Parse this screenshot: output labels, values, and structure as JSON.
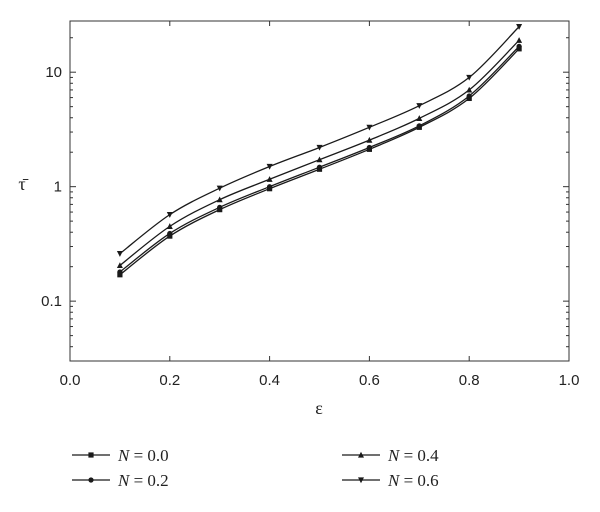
{
  "chart_data": {
    "type": "line",
    "xlabel": "ε",
    "ylabel": "τ̄",
    "xlim": [
      0.0,
      1.0
    ],
    "ylim": [
      0.03,
      28
    ],
    "y_scale": "log",
    "x_ticks": [
      "0.0",
      "0.2",
      "0.4",
      "0.6",
      "0.8",
      "1.0"
    ],
    "y_ticks": [
      "0.1",
      "1",
      "10"
    ],
    "grid": false,
    "legend_position": "bottom",
    "x": [
      0.1,
      0.2,
      0.3,
      0.4,
      0.5,
      0.6,
      0.7,
      0.8,
      0.9
    ],
    "series": [
      {
        "name": "N = 0.0",
        "marker": "square",
        "values": [
          0.17,
          0.37,
          0.63,
          0.96,
          1.42,
          2.12,
          3.3,
          5.9,
          16
        ]
      },
      {
        "name": "N = 0.2",
        "marker": "circle",
        "values": [
          0.18,
          0.39,
          0.66,
          1.0,
          1.48,
          2.2,
          3.4,
          6.2,
          16.8
        ]
      },
      {
        "name": "N = 0.4",
        "marker": "triangle-up",
        "values": [
          0.205,
          0.45,
          0.77,
          1.16,
          1.72,
          2.55,
          3.95,
          7.0,
          19
        ]
      },
      {
        "name": "N = 0.6",
        "marker": "triangle-down",
        "values": [
          0.26,
          0.57,
          0.97,
          1.5,
          2.2,
          3.3,
          5.1,
          9.0,
          25
        ]
      }
    ],
    "legend": [
      {
        "label_var": "N",
        "label_val": " = 0.0"
      },
      {
        "label_var": "N",
        "label_val": " = 0.2"
      },
      {
        "label_var": "N",
        "label_val": " = 0.4"
      },
      {
        "label_var": "N",
        "label_val": " = 0.6"
      }
    ]
  },
  "colors": {
    "line": "#1a1a1a",
    "axis": "#333333"
  }
}
